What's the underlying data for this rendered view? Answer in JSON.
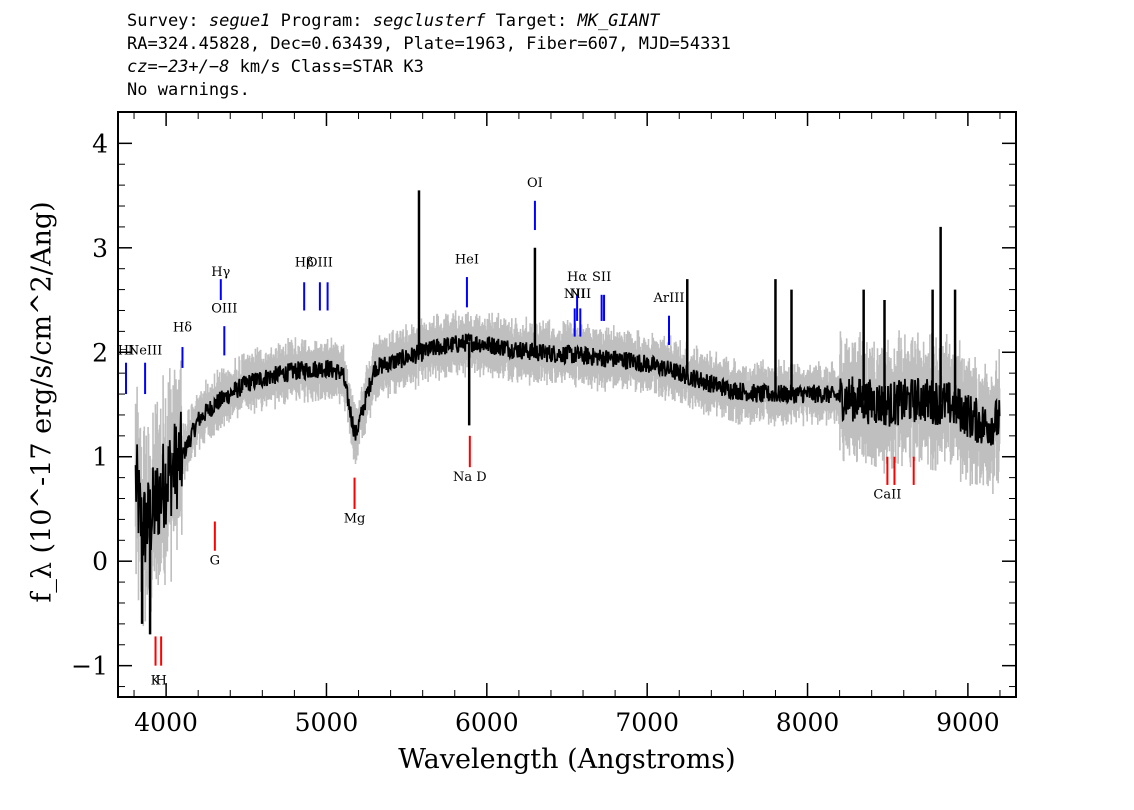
{
  "header": {
    "survey_label": "Survey:",
    "survey": "segue1",
    "program_label": "Program:",
    "program": "segclusterf",
    "target_label": "Target:",
    "target": "MK_GIANT",
    "line2": "RA=324.45828, Dec=0.63439, Plate=1963, Fiber=607, MJD=54331",
    "cz_label": "cz=",
    "cz_value": "−23+/−8",
    "cz_rest": " km/s Class=STAR K3",
    "line4": "No warnings."
  },
  "colors": {
    "flux": "#000000",
    "error": "#bfbfbf",
    "emission": "#0000ff",
    "absorption": "#ff0000"
  },
  "chart_data": {
    "type": "line",
    "xlabel": "Wavelength (Angstroms)",
    "ylabel": "f_λ (10^-17 erg/s/cm^2/Ang)",
    "xlim": [
      3700,
      9300
    ],
    "ylim": [
      -1.3,
      4.3
    ],
    "xticks": [
      4000,
      5000,
      6000,
      7000,
      8000,
      9000
    ],
    "yticks": [
      -1,
      0,
      1,
      2,
      3,
      4
    ],
    "grid": false,
    "continuum_anchors": {
      "x": [
        3800,
        3850,
        3900,
        3950,
        4000,
        4100,
        4200,
        4300,
        4400,
        4500,
        4600,
        4800,
        5000,
        5100,
        5180,
        5300,
        5500,
        5700,
        5900,
        6100,
        6300,
        6500,
        6700,
        6900,
        7100,
        7300,
        7500,
        7700,
        7900,
        8100,
        8300,
        8500,
        8700,
        8900,
        9100,
        9200
      ],
      "y": [
        0.9,
        0.3,
        0.4,
        0.6,
        0.8,
        1.0,
        1.35,
        1.5,
        1.6,
        1.7,
        1.75,
        1.82,
        1.85,
        1.8,
        1.2,
        1.85,
        1.95,
        2.05,
        2.1,
        2.05,
        2.0,
        1.98,
        1.95,
        1.92,
        1.85,
        1.75,
        1.65,
        1.6,
        1.6,
        1.6,
        1.55,
        1.5,
        1.55,
        1.5,
        1.3,
        1.35
      ]
    },
    "spikes": [
      {
        "x": 5577,
        "y": 3.55
      },
      {
        "x": 6300,
        "y": 3.0
      },
      {
        "x": 5890,
        "y": 1.3
      },
      {
        "x": 3850,
        "y": -0.6
      },
      {
        "x": 3900,
        "y": -0.7
      },
      {
        "x": 7250,
        "y": 2.7
      },
      {
        "x": 7800,
        "y": 2.7
      },
      {
        "x": 7900,
        "y": 2.6
      },
      {
        "x": 8350,
        "y": 2.6
      },
      {
        "x": 8830,
        "y": 3.2
      },
      {
        "x": 8780,
        "y": 2.6
      },
      {
        "x": 8920,
        "y": 2.6
      },
      {
        "x": 8480,
        "y": 2.5
      }
    ],
    "emission_lines": [
      {
        "label": "HI",
        "x": 3750,
        "y0": 1.6,
        "y1": 1.9,
        "label_y": 1.98
      },
      {
        "label": "NeIII",
        "x": 3869,
        "y0": 1.6,
        "y1": 1.9,
        "label_y": 1.98
      },
      {
        "label": "Hδ",
        "x": 4102,
        "y0": 1.85,
        "y1": 2.05,
        "label_y": 2.2
      },
      {
        "label": "Hγ",
        "x": 4341,
        "y0": 2.5,
        "y1": 2.7,
        "label_y": 2.73
      },
      {
        "label": "OIII",
        "x": 4363,
        "y0": 1.97,
        "y1": 2.25,
        "label_y": 2.38
      },
      {
        "label": "Hβ",
        "x": 4861,
        "y0": 2.4,
        "y1": 2.67,
        "label_y": 2.82
      },
      {
        "label": "OIII",
        "x": 4959,
        "y0": 2.4,
        "y1": 2.67,
        "label_y": 2.82
      },
      {
        "label": "",
        "x": 5007,
        "y0": 2.4,
        "y1": 2.67,
        "label_y": 2.82
      },
      {
        "label": "HeI",
        "x": 5876,
        "y0": 2.43,
        "y1": 2.72,
        "label_y": 2.85
      },
      {
        "label": "OI",
        "x": 6300,
        "y0": 3.17,
        "y1": 3.45,
        "label_y": 3.58
      },
      {
        "label": "NII",
        "x": 6548,
        "y0": 2.15,
        "y1": 2.42,
        "label_y": 2.52
      },
      {
        "label": "Hα",
        "x": 6563,
        "y0": 2.3,
        "y1": 2.55,
        "label_y": 2.68
      },
      {
        "label": "NII",
        "x": 6583,
        "y0": 2.15,
        "y1": 2.42,
        "label_y": 2.52
      },
      {
        "label": "SII",
        "x": 6716,
        "y0": 2.3,
        "y1": 2.55,
        "label_y": 2.68
      },
      {
        "label": "",
        "x": 6731,
        "y0": 2.3,
        "y1": 2.55,
        "label_y": 2.68
      },
      {
        "label": "ArIII",
        "x": 7136,
        "y0": 2.07,
        "y1": 2.35,
        "label_y": 2.48
      }
    ],
    "absorption_lines": [
      {
        "label": "K",
        "x": 3934,
        "y0": -1.0,
        "y1": -0.72,
        "label_y": -1.18
      },
      {
        "label": "H",
        "x": 3969,
        "y0": -1.0,
        "y1": -0.72,
        "label_y": -1.18
      },
      {
        "label": "G",
        "x": 4304,
        "y0": 0.1,
        "y1": 0.38,
        "label_y": -0.03
      },
      {
        "label": "Mg",
        "x": 5175,
        "y0": 0.5,
        "y1": 0.8,
        "label_y": 0.37
      },
      {
        "label": "Na D",
        "x": 5894,
        "y0": 0.9,
        "y1": 1.2,
        "label_y": 0.77
      },
      {
        "label": "CaII",
        "x": 8498,
        "y0": 0.73,
        "y1": 1.0,
        "label_y": 0.6
      },
      {
        "label": "",
        "x": 8542,
        "y0": 0.73,
        "y1": 1.0,
        "label_y": 0.6
      },
      {
        "label": "",
        "x": 8662,
        "y0": 0.73,
        "y1": 1.0,
        "label_y": 0.6
      }
    ]
  }
}
